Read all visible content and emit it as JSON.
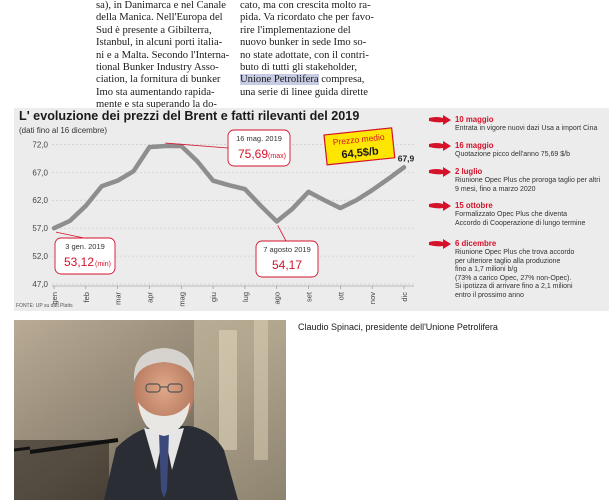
{
  "article": {
    "col1": [
      "sa), in Danimarca e nel Canale",
      "della Manica. Nell'Europa del",
      "Sud è presente a Gibilterra,",
      "Istanbul, in alcuni porti italia-",
      "ni e a Malta. Secondo l'Interna-",
      "tional Bunker Industry Asso-",
      "ciation, la fornitura di bunker",
      "Imo sta aumentando rapida-",
      "mente e sta superando la do-"
    ],
    "col2_line1": "cato, ma con crescita molto ra-",
    "col2_line2": "pida. Va ricordato che per favo-",
    "col2_line3": "rire l'implementazione del",
    "col2_line4": "nuovo bunker in sede Imo so-",
    "col2_line5": "no state adottate, con il contri-",
    "col2_line6": "buto di tutti gli stakeholder,",
    "col2_line7_highlight": "Unione Petrolifera",
    "col2_line7_rest": " compresa,",
    "col2_line8": "una serie di linee guida dirette"
  },
  "colors": {
    "line": "#8e8e8e",
    "accent": "#d4122a",
    "badge": "#ffe600",
    "panel": "#ececec",
    "grid": "#c9c9c9"
  },
  "chart_data": {
    "type": "line",
    "title": "L' evoluzione dei prezzi del Brent e fatti rilevanti del 2019",
    "subtitle": "(dati fino al 16 dicembre)",
    "categories": [
      "gen",
      "feb",
      "mar",
      "apr",
      "mag",
      "giu",
      "lug",
      "ago",
      "set",
      "ott",
      "nov",
      "dic"
    ],
    "x": [
      0,
      0.5,
      1,
      1.5,
      2,
      2.5,
      3,
      3.5,
      4,
      4.5,
      5,
      5.5,
      6,
      6.5,
      7,
      7.5,
      8,
      8.5,
      9,
      9.5,
      10,
      10.5,
      11
    ],
    "values": [
      57.0,
      58.3,
      61.0,
      64.5,
      65.5,
      67.2,
      71.5,
      71.7,
      71.7,
      69.0,
      65.5,
      64.7,
      64.0,
      61.0,
      58.2,
      60.5,
      63.5,
      62.0,
      60.6,
      62.0,
      63.8,
      65.8,
      67.9
    ],
    "yticks": [
      47.0,
      52.0,
      57.0,
      62.0,
      67.0,
      72.0
    ],
    "ylim": [
      47.0,
      73.5
    ],
    "grid": true,
    "end_label": "67,9",
    "annotations": [
      {
        "date": "3 gen. 2019",
        "value": "53,12",
        "unit": "(min)"
      },
      {
        "date": "16 mag. 2019",
        "value": "75,69",
        "unit": "(max)"
      },
      {
        "date": "7 agosto 2019",
        "value": "54,17",
        "unit": ""
      }
    ],
    "average": {
      "label": "Prezzo medio",
      "value": "64,5$/b"
    }
  },
  "source_note": "FONTE: UP su dati Platts",
  "events": [
    {
      "date": "10 maggio",
      "desc": [
        "Entrata in vigore nuovi dazi Usa a import Cina"
      ]
    },
    {
      "date": "16 maggio",
      "desc": [
        "Quotazione picco dell'anno 75,69 $/b"
      ]
    },
    {
      "date": "2 luglio",
      "desc": [
        "Riunione Opec Plus che proroga taglio per altri",
        "9 mesi, fino a marzo 2020"
      ]
    },
    {
      "date": "15 ottobre",
      "desc": [
        "Formalizzato Opec Plus che diventa",
        "Accordo di Cooperazione di lungo termine"
      ]
    },
    {
      "date": "6 dicembre",
      "desc": [
        "Riunione Opec Plus che trova accordo",
        "per ulteriore taglio alla produzione",
        "fino a 1,7 milioni b/g",
        "(73% a carico Opec, 27% non-Opec).",
        "Si ipotizza di arrivare fino a 2,1 milioni",
        "entro il prossimo anno"
      ]
    }
  ],
  "caption": "Claudio Spinaci, presidente dell'Unione Petrolifera"
}
